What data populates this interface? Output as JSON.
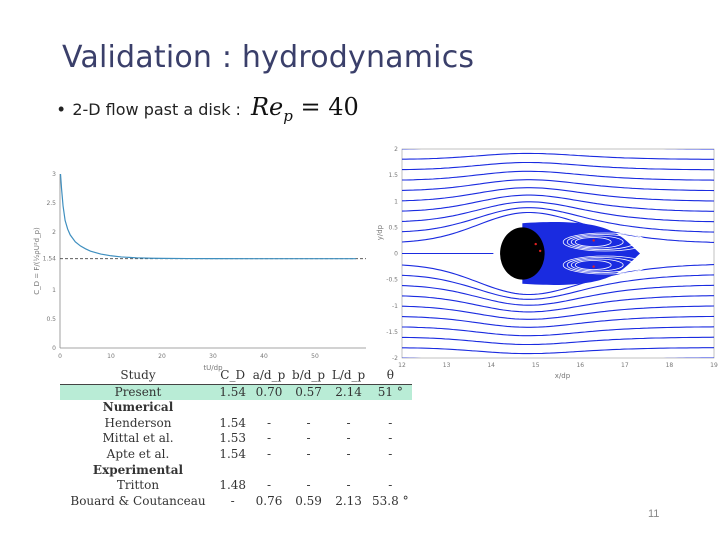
{
  "slide": {
    "title": "Validation : hydrodynamics",
    "bullet_text": "2-D flow past a disk :",
    "equation": {
      "lhs": "Re",
      "sub": "p",
      "rhs": "= 40"
    },
    "page_number": "11"
  },
  "chart_data": [
    {
      "type": "line",
      "title": "",
      "xlabel": "tU/dp",
      "ylabel": "C_D = F/(½ρU²d_p)",
      "xlim": [
        0,
        60
      ],
      "ylim": [
        0,
        3
      ],
      "x_ticks": [
        "0",
        "10",
        "20",
        "30",
        "40",
        "50"
      ],
      "y_ticks": [
        "0",
        "0.5",
        "1",
        "1.54",
        "2",
        "2.5",
        "3"
      ],
      "reference_line": {
        "y": 1.54,
        "label": "1.54"
      },
      "series": [
        {
          "x": [
            0.1,
            0.3,
            0.6,
            1,
            1.5,
            2,
            3,
            4,
            5,
            6,
            8,
            10,
            12,
            15,
            18,
            20,
            25,
            30,
            40,
            50,
            58
          ],
          "values": [
            3.0,
            2.75,
            2.45,
            2.2,
            2.05,
            1.95,
            1.83,
            1.76,
            1.71,
            1.67,
            1.62,
            1.59,
            1.57,
            1.555,
            1.548,
            1.545,
            1.542,
            1.541,
            1.54,
            1.54,
            1.54
          ]
        }
      ],
      "colors": {
        "line": "#3f8fbf",
        "reference": "#444444"
      }
    },
    {
      "type": "line",
      "title": "",
      "xlabel": "x/dp",
      "ylabel": "y/dp",
      "xlim": [
        12,
        19
      ],
      "ylim": [
        -2,
        2
      ],
      "x_ticks": [
        "12",
        "13",
        "14",
        "15",
        "16",
        "17",
        "18",
        "19"
      ],
      "y_ticks": [
        "2",
        "1.5",
        "1",
        "0.5",
        "0",
        "-0.5",
        "-1",
        "-1.5",
        "-2"
      ],
      "disk": {
        "center_x": 14.7,
        "center_y": 0,
        "diameter": 1
      },
      "colors": {
        "streamline": "#1a2be0",
        "disk": "#000000",
        "wake": "#1a2be0"
      }
    }
  ],
  "table": {
    "headers": [
      "Study",
      "C_D",
      "a/d_p",
      "b/d_p",
      "L/d_p",
      "θ"
    ],
    "present": {
      "study": "Present",
      "values": [
        "1.54",
        "0.70",
        "0.57",
        "2.14",
        "51 °"
      ]
    },
    "numerical_label": "Numerical",
    "numerical": [
      {
        "study": "Henderson",
        "values": [
          "1.54",
          "-",
          "-",
          "-",
          "-"
        ]
      },
      {
        "study": "Mittal et al.",
        "values": [
          "1.53",
          "-",
          "-",
          "-",
          "-"
        ]
      },
      {
        "study": "Apte et al.",
        "values": [
          "1.54",
          "-",
          "-",
          "-",
          "-"
        ]
      }
    ],
    "experimental_label": "Experimental",
    "experimental": [
      {
        "study": "Tritton",
        "values": [
          "1.48",
          "-",
          "-",
          "-",
          "-"
        ]
      },
      {
        "study": "Bouard & Coutanceau",
        "values": [
          "-",
          "0.76",
          "0.59",
          "2.13",
          "53.8 °"
        ]
      }
    ]
  }
}
